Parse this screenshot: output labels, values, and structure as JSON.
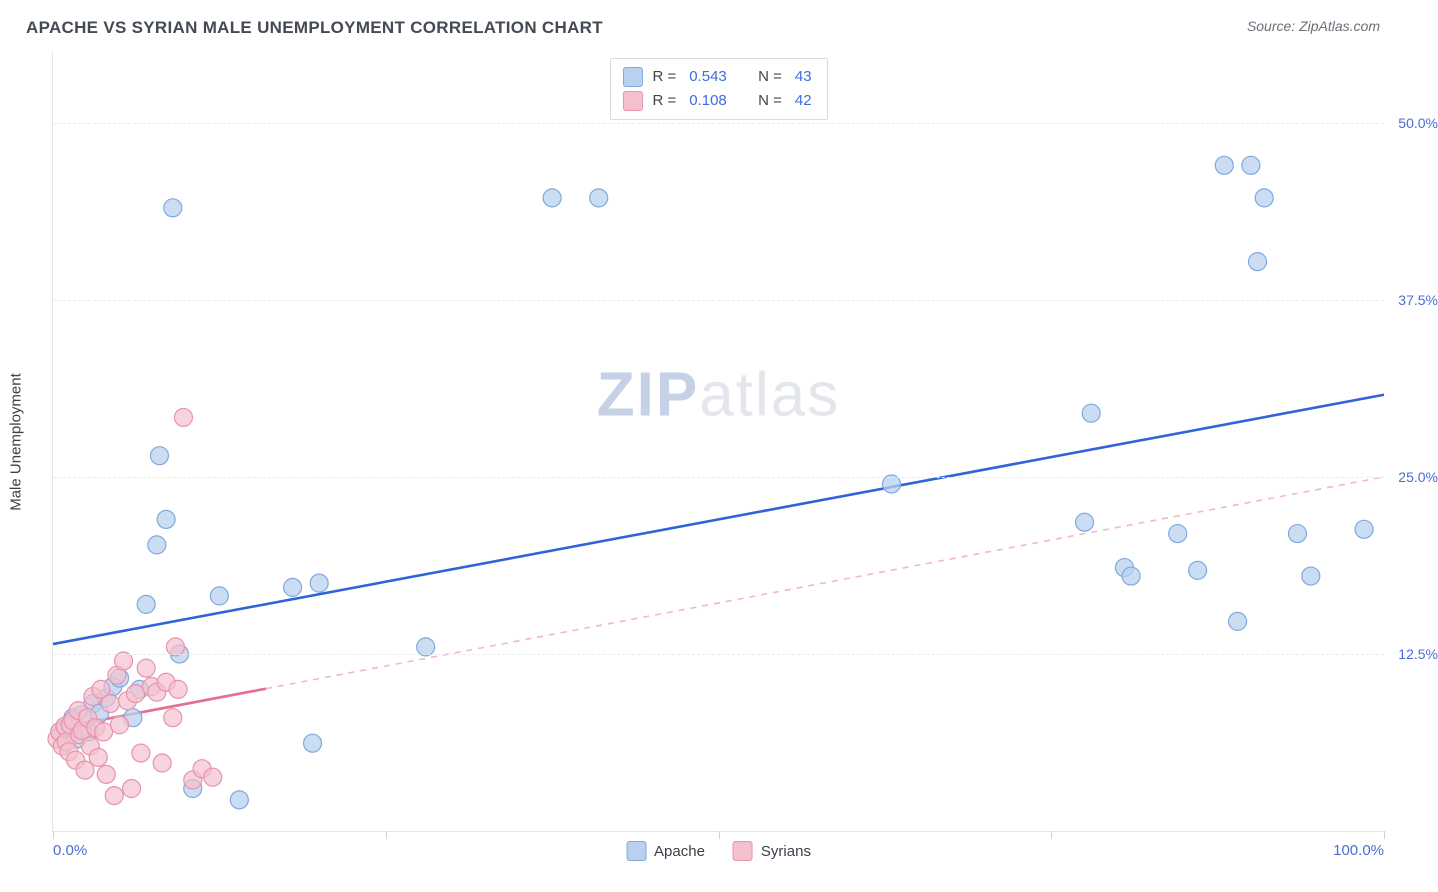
{
  "title": "APACHE VS SYRIAN MALE UNEMPLOYMENT CORRELATION CHART",
  "source": "Source: ZipAtlas.com",
  "watermark": {
    "left": "ZIP",
    "right": "atlas"
  },
  "ylabel": "Male Unemployment",
  "chart": {
    "type": "scatter",
    "xlim": [
      0,
      100
    ],
    "ylim": [
      0,
      55
    ],
    "xtick_positions": [
      0,
      25,
      50,
      75,
      100
    ],
    "xlabel_min": "0.0%",
    "xlabel_max": "100.0%",
    "ytick_values": [
      12.5,
      25.0,
      37.5,
      50.0
    ],
    "ytick_labels": [
      "12.5%",
      "25.0%",
      "37.5%",
      "50.0%"
    ],
    "background_color": "#ffffff",
    "grid_color": "#e8eaee",
    "axis_color": "#e4e6ea",
    "marker_radius": 9,
    "marker_stroke_width": 1.2,
    "series": [
      {
        "name": "Apache",
        "fill": "#b9d1ef",
        "stroke": "#7fa9dd",
        "fill_opacity": 0.75,
        "r_value": "0.543",
        "n_value": "43",
        "trend": {
          "color": "#2f63d6",
          "width": 2.6,
          "y_at_x0": 13.2,
          "y_at_x100": 30.8,
          "solid_xmax": 100,
          "dash_after": false
        },
        "points": [
          [
            0.5,
            7.0
          ],
          [
            1.0,
            7.3
          ],
          [
            1.5,
            8.0
          ],
          [
            1.8,
            6.5
          ],
          [
            2.2,
            8.2
          ],
          [
            2.7,
            7.0
          ],
          [
            3.0,
            9.0
          ],
          [
            3.5,
            8.3
          ],
          [
            4.0,
            9.4
          ],
          [
            4.5,
            10.2
          ],
          [
            5.0,
            10.8
          ],
          [
            6.0,
            8.0
          ],
          [
            6.5,
            10.0
          ],
          [
            7.0,
            16.0
          ],
          [
            7.8,
            20.2
          ],
          [
            8.0,
            26.5
          ],
          [
            8.5,
            22.0
          ],
          [
            9.0,
            44.0
          ],
          [
            9.5,
            12.5
          ],
          [
            10.5,
            3.0
          ],
          [
            12.5,
            16.6
          ],
          [
            14.0,
            2.2
          ],
          [
            18.0,
            17.2
          ],
          [
            19.5,
            6.2
          ],
          [
            20.0,
            17.5
          ],
          [
            28.0,
            13.0
          ],
          [
            37.5,
            44.7
          ],
          [
            41.0,
            44.7
          ],
          [
            63.0,
            24.5
          ],
          [
            77.5,
            21.8
          ],
          [
            78.0,
            29.5
          ],
          [
            80.5,
            18.6
          ],
          [
            81.0,
            18.0
          ],
          [
            84.5,
            21.0
          ],
          [
            86.0,
            18.4
          ],
          [
            88.0,
            47.0
          ],
          [
            89.0,
            14.8
          ],
          [
            90.0,
            47.0
          ],
          [
            90.5,
            40.2
          ],
          [
            91.0,
            44.7
          ],
          [
            93.5,
            21.0
          ],
          [
            94.5,
            18.0
          ],
          [
            98.5,
            21.3
          ]
        ]
      },
      {
        "name": "Syrians",
        "fill": "#f4c0ce",
        "stroke": "#e793ab",
        "fill_opacity": 0.7,
        "r_value": "0.108",
        "n_value": "42",
        "trend": {
          "color": "#e66f8e",
          "width": 2.2,
          "y_at_x0": 7.2,
          "y_at_x100": 25.0,
          "solid_xmax": 16,
          "dash_after": true,
          "dash_color": "#f1b8c6"
        },
        "points": [
          [
            0.3,
            6.5
          ],
          [
            0.5,
            7.0
          ],
          [
            0.7,
            6.0
          ],
          [
            0.9,
            7.4
          ],
          [
            1.0,
            6.3
          ],
          [
            1.2,
            5.6
          ],
          [
            1.3,
            7.5
          ],
          [
            1.5,
            7.8
          ],
          [
            1.7,
            5.0
          ],
          [
            1.9,
            8.5
          ],
          [
            2.0,
            6.8
          ],
          [
            2.2,
            7.1
          ],
          [
            2.4,
            4.3
          ],
          [
            2.6,
            8.0
          ],
          [
            2.8,
            6.0
          ],
          [
            3.0,
            9.5
          ],
          [
            3.2,
            7.3
          ],
          [
            3.4,
            5.2
          ],
          [
            3.6,
            10.0
          ],
          [
            3.8,
            7.0
          ],
          [
            4.0,
            4.0
          ],
          [
            4.3,
            9.0
          ],
          [
            4.6,
            2.5
          ],
          [
            4.8,
            11.0
          ],
          [
            5.0,
            7.5
          ],
          [
            5.3,
            12.0
          ],
          [
            5.6,
            9.2
          ],
          [
            5.9,
            3.0
          ],
          [
            6.2,
            9.7
          ],
          [
            6.6,
            5.5
          ],
          [
            7.0,
            11.5
          ],
          [
            7.4,
            10.2
          ],
          [
            7.8,
            9.8
          ],
          [
            8.2,
            4.8
          ],
          [
            8.5,
            10.5
          ],
          [
            9.0,
            8.0
          ],
          [
            9.4,
            10.0
          ],
          [
            9.8,
            29.2
          ],
          [
            10.5,
            3.6
          ],
          [
            11.2,
            4.4
          ],
          [
            12.0,
            3.8
          ],
          [
            9.2,
            13.0
          ]
        ]
      }
    ]
  },
  "legend_bottom": {
    "items": [
      {
        "label": "Apache",
        "fill": "#b9d1ef",
        "stroke": "#7fa9dd"
      },
      {
        "label": "Syrians",
        "fill": "#f4c0ce",
        "stroke": "#e793ab"
      }
    ]
  },
  "legend_top_labels": {
    "r": "R =",
    "n": "N ="
  }
}
